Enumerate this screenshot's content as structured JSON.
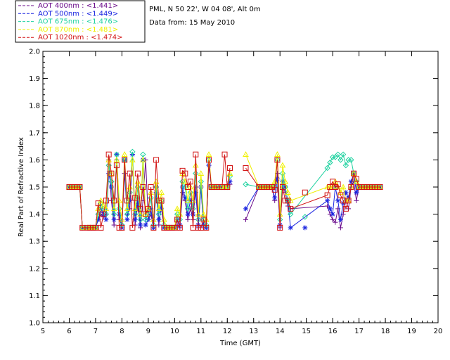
{
  "chart_data": {
    "type": "line",
    "title_lines": [
      "PML, N 50 22', W 04 08', Alt 0m",
      "Data from: 15 May 2010"
    ],
    "xlabel": "Time (GMT)",
    "ylabel": "Real Part of Refractive Index",
    "xlim": [
      5,
      20
    ],
    "ylim": [
      1.0,
      2.0
    ],
    "xticks": [
      "5",
      "6",
      "7",
      "8",
      "9",
      "10",
      "11",
      "12",
      "13",
      "14",
      "15",
      "16",
      "17",
      "18",
      "19",
      "20"
    ],
    "yticks": [
      "1.0",
      "1.1",
      "1.2",
      "1.3",
      "1.4",
      "1.5",
      "1.6",
      "1.7",
      "1.8",
      "1.9",
      "2.0"
    ],
    "legend_position": "top-left",
    "series": [
      {
        "name": "AOT  400nm : <1.441>",
        "color": "#6a0a8a",
        "marker": "plus",
        "x": [
          6.0,
          6.1,
          6.2,
          6.3,
          6.4,
          6.5,
          6.7,
          6.8,
          6.9,
          7.0,
          7.1,
          7.2,
          7.3,
          7.4,
          7.5,
          7.6,
          7.7,
          7.8,
          7.9,
          8.0,
          8.1,
          8.2,
          8.3,
          8.4,
          8.5,
          8.6,
          8.7,
          8.8,
          8.9,
          9.0,
          9.1,
          9.2,
          9.3,
          9.4,
          9.5,
          9.6,
          9.7,
          9.8,
          9.9,
          10.0,
          10.1,
          10.2,
          10.3,
          10.4,
          10.5,
          10.6,
          10.7,
          10.8,
          10.9,
          11.0,
          11.1,
          11.2,
          11.3,
          11.4,
          11.5,
          11.6,
          11.8,
          11.9,
          12.0,
          12.1,
          null,
          12.7,
          13.2,
          13.3,
          13.4,
          13.5,
          13.6,
          13.7,
          13.8,
          13.9,
          14.0,
          14.1,
          14.2,
          14.3,
          14.4,
          15.8,
          15.9,
          16.0,
          16.1,
          16.2,
          16.3,
          16.4,
          16.5,
          16.6,
          16.7,
          16.8,
          16.9,
          17.0,
          17.1,
          17.2,
          17.3,
          17.4,
          17.5,
          17.6,
          17.7,
          17.8
        ],
        "y": [
          1.5,
          1.5,
          1.5,
          1.5,
          1.5,
          1.35,
          1.35,
          1.35,
          1.35,
          1.35,
          1.38,
          1.4,
          1.39,
          1.4,
          1.6,
          1.45,
          1.36,
          1.6,
          1.38,
          1.36,
          1.55,
          1.4,
          1.42,
          1.62,
          1.36,
          1.44,
          1.35,
          1.45,
          1.6,
          1.38,
          1.4,
          1.35,
          1.5,
          1.36,
          1.44,
          1.35,
          1.35,
          1.35,
          1.35,
          1.35,
          1.36,
          1.35,
          1.48,
          1.45,
          1.38,
          1.42,
          1.38,
          1.5,
          1.35,
          1.5,
          1.35,
          1.35,
          1.58,
          1.5,
          1.5,
          1.5,
          1.5,
          1.5,
          1.5,
          1.51,
          null,
          1.38,
          1.5,
          1.5,
          1.5,
          1.5,
          1.5,
          1.5,
          1.45,
          1.55,
          1.35,
          1.5,
          1.48,
          1.43,
          1.42,
          1.43,
          1.4,
          1.38,
          1.37,
          1.42,
          1.35,
          1.4,
          1.45,
          1.42,
          1.5,
          1.52,
          1.45,
          1.5,
          1.5,
          1.5,
          1.5,
          1.5,
          1.5,
          1.5,
          1.5,
          1.5
        ]
      },
      {
        "name": "AOT  500nm : <1.449>",
        "color": "#1a24e0",
        "marker": "asterisk",
        "x": [
          6.0,
          6.1,
          6.2,
          6.3,
          6.4,
          6.5,
          6.7,
          6.8,
          6.9,
          7.0,
          7.1,
          7.2,
          7.3,
          7.4,
          7.5,
          7.6,
          7.7,
          7.8,
          7.9,
          8.0,
          8.1,
          8.2,
          8.3,
          8.4,
          8.5,
          8.6,
          8.7,
          8.8,
          8.9,
          9.0,
          9.1,
          9.2,
          9.3,
          9.4,
          9.5,
          9.6,
          9.7,
          9.8,
          9.9,
          10.0,
          10.1,
          10.2,
          10.3,
          10.4,
          10.5,
          10.6,
          10.7,
          10.8,
          10.9,
          11.0,
          11.1,
          11.2,
          11.3,
          11.4,
          11.5,
          11.6,
          11.8,
          11.9,
          12.0,
          12.1,
          null,
          12.7,
          13.2,
          13.3,
          13.4,
          13.5,
          13.6,
          13.7,
          13.8,
          13.9,
          14.0,
          14.1,
          14.2,
          14.3,
          14.4,
          15.8,
          15.9,
          16.0,
          16.1,
          16.2,
          16.3,
          16.4,
          16.5,
          16.6,
          16.7,
          16.8,
          16.9,
          17.0,
          17.1,
          17.2,
          17.3,
          17.4,
          17.5,
          17.6,
          17.7,
          17.8
        ],
        "y": [
          1.5,
          1.5,
          1.5,
          1.5,
          1.5,
          1.35,
          1.35,
          1.35,
          1.35,
          1.35,
          1.38,
          1.42,
          1.4,
          1.38,
          1.55,
          1.5,
          1.38,
          1.62,
          1.4,
          1.35,
          1.6,
          1.38,
          1.45,
          1.62,
          1.38,
          1.46,
          1.36,
          1.6,
          1.36,
          1.38,
          1.42,
          1.35,
          1.48,
          1.38,
          1.42,
          1.35,
          1.35,
          1.35,
          1.35,
          1.35,
          1.38,
          1.36,
          1.5,
          1.46,
          1.4,
          1.45,
          1.4,
          1.48,
          1.36,
          1.5,
          1.36,
          1.35,
          1.58,
          1.5,
          1.5,
          1.5,
          1.5,
          1.5,
          1.5,
          1.52,
          null,
          1.42,
          1.5,
          1.5,
          1.5,
          1.5,
          1.5,
          1.5,
          1.46,
          1.53,
          1.36,
          1.52,
          1.5,
          1.45,
          1.35,
          1.45,
          1.42,
          1.4,
          1.5,
          1.45,
          1.38,
          1.44,
          1.48,
          1.46,
          1.52,
          1.55,
          1.48,
          1.5,
          1.5,
          1.5,
          1.5,
          1.5,
          1.5,
          1.5,
          1.5,
          1.5
        ]
      },
      {
        "name": "AOT  675nm : <1.476>",
        "color": "#1ed2a0",
        "marker": "diamond",
        "x": [
          6.0,
          6.1,
          6.2,
          6.3,
          6.4,
          6.5,
          6.7,
          6.8,
          6.9,
          7.0,
          7.1,
          7.2,
          7.3,
          7.4,
          7.5,
          7.6,
          7.7,
          7.8,
          7.9,
          8.0,
          8.1,
          8.2,
          8.3,
          8.4,
          8.5,
          8.6,
          8.7,
          8.8,
          8.9,
          9.0,
          9.1,
          9.2,
          9.3,
          9.4,
          9.5,
          9.6,
          9.7,
          9.8,
          9.9,
          10.0,
          10.1,
          10.2,
          10.3,
          10.4,
          10.5,
          10.6,
          10.7,
          10.8,
          10.9,
          11.0,
          11.1,
          11.2,
          11.3,
          11.4,
          11.5,
          11.6,
          11.8,
          11.9,
          12.0,
          12.1,
          null,
          12.7,
          13.2,
          13.3,
          13.4,
          13.5,
          13.6,
          13.7,
          13.8,
          13.9,
          14.0,
          14.1,
          14.2,
          14.3,
          14.4,
          15.8,
          15.9,
          16.0,
          16.1,
          16.2,
          16.3,
          16.4,
          16.5,
          16.6,
          16.7,
          16.8,
          16.9,
          17.0,
          17.1,
          17.2,
          17.3,
          17.4,
          17.5,
          17.6,
          17.7,
          17.8
        ],
        "y": [
          1.5,
          1.5,
          1.5,
          1.5,
          1.5,
          1.35,
          1.35,
          1.35,
          1.35,
          1.35,
          1.4,
          1.44,
          1.42,
          1.4,
          1.58,
          1.52,
          1.4,
          1.62,
          1.42,
          1.36,
          1.6,
          1.4,
          1.48,
          1.63,
          1.4,
          1.5,
          1.38,
          1.62,
          1.38,
          1.4,
          1.46,
          1.36,
          1.5,
          1.4,
          1.45,
          1.36,
          1.35,
          1.35,
          1.35,
          1.35,
          1.4,
          1.38,
          1.52,
          1.5,
          1.42,
          1.48,
          1.42,
          1.55,
          1.38,
          1.52,
          1.38,
          1.36,
          1.6,
          1.5,
          1.5,
          1.5,
          1.5,
          1.5,
          1.5,
          1.54,
          null,
          1.51,
          1.5,
          1.5,
          1.5,
          1.5,
          1.5,
          1.5,
          1.5,
          1.6,
          1.38,
          1.55,
          1.5,
          1.45,
          1.4,
          1.57,
          1.59,
          1.61,
          1.61,
          1.62,
          1.6,
          1.62,
          1.58,
          1.6,
          1.6,
          1.55,
          1.52,
          1.5,
          1.5,
          1.5,
          1.5,
          1.5,
          1.5,
          1.5,
          1.5,
          1.5
        ]
      },
      {
        "name": "AOT  870nm : <1.481>",
        "color": "#f0f000",
        "marker": "triangle",
        "x": [
          6.0,
          6.1,
          6.2,
          6.3,
          6.4,
          6.5,
          6.7,
          6.8,
          6.9,
          7.0,
          7.1,
          7.2,
          7.3,
          7.4,
          7.5,
          7.6,
          7.7,
          7.8,
          7.9,
          8.0,
          8.1,
          8.2,
          8.3,
          8.4,
          8.5,
          8.6,
          8.7,
          8.8,
          8.9,
          9.0,
          9.1,
          9.2,
          9.3,
          9.4,
          9.5,
          9.6,
          9.7,
          9.8,
          9.9,
          10.0,
          10.1,
          10.2,
          10.3,
          10.4,
          10.5,
          10.6,
          10.7,
          10.8,
          10.9,
          11.0,
          11.1,
          11.2,
          11.3,
          11.4,
          11.5,
          11.6,
          11.8,
          11.9,
          12.0,
          12.1,
          null,
          12.7,
          13.2,
          13.3,
          13.4,
          13.5,
          13.6,
          13.7,
          13.8,
          13.9,
          14.0,
          14.1,
          14.2,
          14.3,
          14.4,
          15.8,
          15.9,
          16.0,
          16.1,
          16.2,
          16.3,
          16.4,
          16.5,
          16.6,
          16.7,
          16.8,
          16.9,
          17.0,
          17.1,
          17.2,
          17.3,
          17.4,
          17.5,
          17.6,
          17.7,
          17.8
        ],
        "y": [
          1.5,
          1.5,
          1.5,
          1.5,
          1.5,
          1.35,
          1.35,
          1.35,
          1.35,
          1.35,
          1.42,
          1.45,
          1.43,
          1.42,
          1.6,
          1.55,
          1.42,
          1.6,
          1.45,
          1.38,
          1.62,
          1.42,
          1.5,
          1.6,
          1.42,
          1.52,
          1.4,
          1.6,
          1.4,
          1.42,
          1.48,
          1.38,
          1.52,
          1.42,
          1.48,
          1.38,
          1.35,
          1.35,
          1.35,
          1.35,
          1.42,
          1.4,
          1.55,
          1.52,
          1.45,
          1.5,
          1.45,
          1.58,
          1.4,
          1.55,
          1.4,
          1.38,
          1.62,
          1.5,
          1.5,
          1.5,
          1.5,
          1.5,
          1.5,
          1.55,
          null,
          1.62,
          1.5,
          1.5,
          1.5,
          1.5,
          1.5,
          1.5,
          1.52,
          1.62,
          1.4,
          1.58,
          1.52,
          1.48,
          1.45,
          1.5,
          1.5,
          1.5,
          1.52,
          1.5,
          1.48,
          1.5,
          1.45,
          1.45,
          1.5,
          1.55,
          1.52,
          1.5,
          1.5,
          1.5,
          1.5,
          1.5,
          1.5,
          1.5,
          1.5,
          1.5
        ]
      },
      {
        "name": "AOT 1020nm : <1.474>",
        "color": "#d21414",
        "marker": "square",
        "x": [
          6.0,
          6.1,
          6.2,
          6.3,
          6.4,
          6.5,
          6.7,
          6.8,
          6.9,
          7.0,
          7.1,
          7.2,
          7.3,
          7.4,
          7.5,
          7.6,
          7.7,
          7.8,
          7.9,
          8.0,
          8.1,
          8.2,
          8.3,
          8.4,
          8.5,
          8.6,
          8.7,
          8.8,
          8.9,
          9.0,
          9.1,
          9.2,
          9.3,
          9.4,
          9.5,
          9.6,
          9.7,
          9.8,
          9.9,
          10.0,
          10.1,
          10.2,
          10.3,
          10.4,
          10.5,
          10.6,
          10.7,
          10.8,
          10.9,
          11.0,
          11.1,
          11.2,
          11.3,
          11.4,
          11.5,
          11.6,
          11.8,
          11.9,
          12.0,
          12.1,
          null,
          12.7,
          13.2,
          13.3,
          13.4,
          13.5,
          13.6,
          13.7,
          13.8,
          13.9,
          14.0,
          14.1,
          14.2,
          14.3,
          14.4,
          15.8,
          15.9,
          16.0,
          16.1,
          16.2,
          16.3,
          16.4,
          16.5,
          16.6,
          16.7,
          16.8,
          16.9,
          17.0,
          17.1,
          17.2,
          17.3,
          17.4,
          17.5,
          17.6,
          17.7,
          17.8
        ],
        "y": [
          1.5,
          1.5,
          1.5,
          1.5,
          1.5,
          1.35,
          1.35,
          1.35,
          1.35,
          1.35,
          1.44,
          1.35,
          1.4,
          1.45,
          1.62,
          1.55,
          1.45,
          1.58,
          1.35,
          1.35,
          1.6,
          1.45,
          1.55,
          1.35,
          1.46,
          1.55,
          1.42,
          1.5,
          1.4,
          1.42,
          1.5,
          1.35,
          1.6,
          1.45,
          1.45,
          1.35,
          1.35,
          1.35,
          1.35,
          1.35,
          1.38,
          1.35,
          1.56,
          1.55,
          1.5,
          1.52,
          1.35,
          1.62,
          1.35,
          1.35,
          1.38,
          1.35,
          1.6,
          1.5,
          1.5,
          1.5,
          1.5,
          1.62,
          1.5,
          1.57,
          null,
          1.57,
          1.5,
          1.5,
          1.5,
          1.5,
          1.5,
          1.5,
          1.49,
          1.6,
          1.35,
          1.5,
          1.45,
          1.45,
          1.42,
          1.47,
          1.5,
          1.52,
          1.5,
          1.51,
          1.47,
          1.45,
          1.42,
          1.45,
          1.5,
          1.55,
          1.53,
          1.5,
          1.5,
          1.5,
          1.5,
          1.5,
          1.5,
          1.5,
          1.5,
          1.5
        ]
      }
    ],
    "isolated_points": [
      {
        "series": 4,
        "x": 14.95,
        "y": 1.48
      },
      {
        "series": 2,
        "x": 14.95,
        "y": 1.39
      },
      {
        "series": 1,
        "x": 14.95,
        "y": 1.35
      }
    ]
  }
}
